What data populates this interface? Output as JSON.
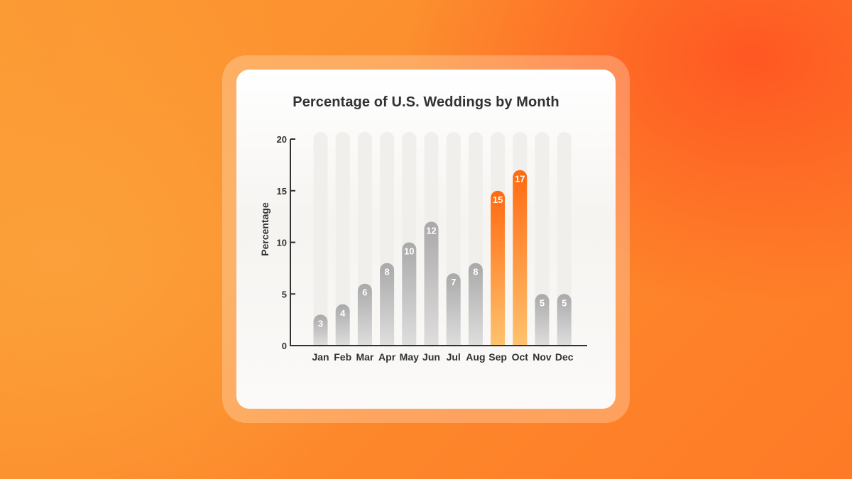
{
  "chart_data": {
    "type": "bar",
    "title": "Percentage of U.S. Weddings by Month",
    "xlabel": "",
    "ylabel": "Percentage",
    "ylim": [
      0,
      20
    ],
    "yticks": [
      0,
      5,
      10,
      15,
      20
    ],
    "categories": [
      "Jan",
      "Feb",
      "Mar",
      "Apr",
      "May",
      "Jun",
      "Jul",
      "Aug",
      "Sep",
      "Oct",
      "Nov",
      "Dec"
    ],
    "values": [
      3,
      4,
      6,
      8,
      10,
      12,
      7,
      8,
      15,
      17,
      5,
      5
    ],
    "highlighted": [
      "Sep",
      "Oct"
    ],
    "grid": false,
    "colors": {
      "bar_default_top": "#a9a9a9",
      "bar_default_bottom": "#dedede",
      "bar_highlight_top": "#ff6a12",
      "bar_highlight_bottom": "#ffc26e",
      "bar_track": "#f0efec",
      "axis": "#2f3133"
    }
  }
}
